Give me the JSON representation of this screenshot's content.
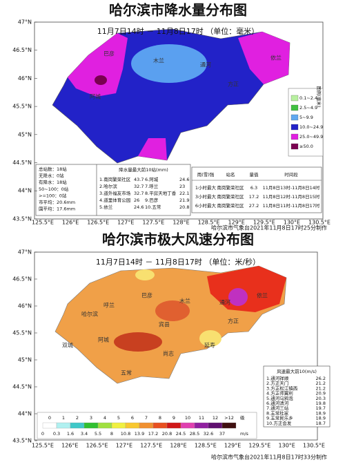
{
  "precip_map": {
    "title": "哈尔滨市降水量分布图",
    "subtitle": "11月7日14时 － 11月8日17时 （单位：毫米）",
    "lat_labels": [
      "47°N",
      "46.5°N",
      "46°N",
      "45.5°N",
      "45°N",
      "44.5°N",
      "44°N",
      "43.5°N"
    ],
    "lon_labels": [
      "125.5°E",
      "126°E",
      "126.5°E",
      "127°E",
      "127.5°E",
      "128°E",
      "128.5°E",
      "129°E",
      "129.5°E",
      "130°E",
      "130.5°E"
    ],
    "place_labels": [
      "木兰",
      "通河",
      "依兰",
      "巴彦",
      "阿城",
      "方正"
    ],
    "legend": {
      "title": "图例(毫米)",
      "items": [
        "0.1~2.4",
        "2.5~4.9",
        "5~9.9",
        "10.0~24.9",
        "25.0~49.9",
        "≥50.0"
      ]
    },
    "stats": [
      "总站数：18站",
      "无降水：0站",
      "有降水：18站",
      "50~100：0站",
      ">=100：0站",
      "市平均：20.6mm",
      "国平均：17.6mm"
    ],
    "top10": {
      "title": "降水量最大前10站(mm)",
      "rows": [
        [
          "1.南岗繁荣社区",
          43.7
        ],
        [
          "2.哈尔滨",
          32.7
        ],
        [
          "3.道外福友市场",
          32.7
        ],
        [
          "4.道里体育公园",
          26
        ],
        [
          "5.依兰",
          24.6
        ],
        [
          "6.阿城",
          24.6
        ],
        [
          "7.呼兰",
          23
        ],
        [
          "8.平房天地丁香",
          22.1
        ],
        [
          "9.巴彦",
          21.9
        ],
        [
          "10.五常",
          20.8
        ]
      ]
    },
    "intensity": {
      "headers": [
        "雨(雪)强",
        "站名",
        "量值",
        "时间段"
      ],
      "rows": [
        [
          "1小时最大",
          "南岗繁荣社区",
          6.3,
          "11月8日13时-11月8日14时"
        ],
        [
          "3小时最大",
          "南岗繁荣社区",
          17.2,
          "11月8日12时-11月8日15时"
        ],
        [
          "6小时最大",
          "南岗繁荣社区",
          27.2,
          "11月8日11时-11月8日17时"
        ]
      ]
    },
    "credit": "哈尔滨市气象台2021年11月8日17时25分制作"
  },
  "wind_map": {
    "title": "哈尔滨市极大风速分布图",
    "subtitle": "11月7日14时 － 11月8日17时 （单位：米/秒）",
    "lat_labels": [
      "47°N",
      "46.5°N",
      "46°N",
      "45.5°N",
      "45°N",
      "44.5°N",
      "44°N",
      "43.5°N"
    ],
    "lon_labels": [
      "125.5°E",
      "126°E",
      "126.5°E",
      "127°E",
      "127.5°E",
      "128°E",
      "128.5°E",
      "129°E",
      "129.5°E",
      "130°E",
      "130.5°E"
    ],
    "place_labels": [
      "巴彦",
      "木兰",
      "通河",
      "依兰",
      "哈尔滨",
      "呼兰",
      "宾县",
      "阿城",
      "双城",
      "延寿",
      "方正",
      "尚志",
      "五常"
    ],
    "top10": {
      "title": "风速最大前10(m/s)",
      "rows": [
        [
          "1.通河祥顺",
          26.2
        ],
        [
          "2.方正天门",
          21.2
        ],
        [
          "3.方正松江镇西",
          21.2
        ],
        [
          "4.方正师翼利",
          20.9
        ],
        [
          "5.通河乌鸦泡",
          20.3
        ],
        [
          "6.通河清河",
          19.8
        ],
        [
          "7.通河三站",
          19.7
        ],
        [
          "8.五常杜家",
          18.9
        ],
        [
          "9.五常民乐乡",
          18.9
        ],
        [
          "10.方正会发",
          18.7
        ]
      ]
    },
    "scale": {
      "levels": [
        0,
        1,
        2,
        3,
        4,
        5,
        6,
        7,
        8,
        9,
        10,
        11,
        12,
        ">12"
      ],
      "level_unit": "级",
      "speeds": [
        0,
        0.3,
        1.6,
        3.4,
        5.5,
        8,
        10.8,
        13.9,
        17.2,
        20.8,
        24.5,
        28.5,
        32.6,
        37
      ],
      "speed_unit": "m/s"
    },
    "credit": "哈尔滨市气象台2021年11月8日17时33分制作"
  }
}
